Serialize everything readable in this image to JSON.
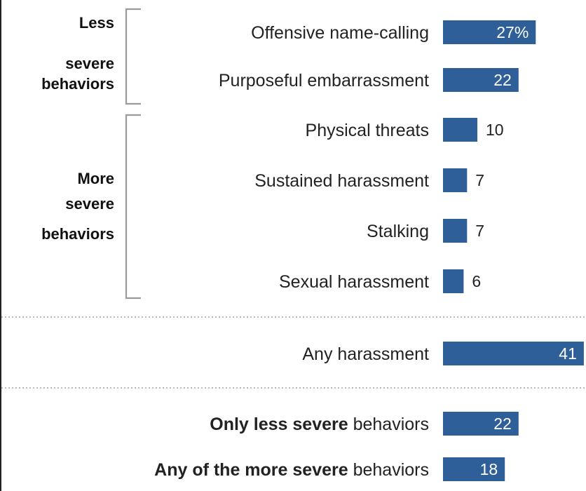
{
  "chart_data": {
    "type": "bar",
    "orientation": "horizontal",
    "value_suffix_first": "%",
    "groups": [
      {
        "label_lines": [
          "Less",
          "severe",
          "behaviors"
        ],
        "rows": [
          0,
          1
        ]
      },
      {
        "label_lines": [
          "More",
          "severe",
          "behaviors"
        ],
        "rows": [
          2,
          3,
          4,
          5
        ]
      }
    ],
    "categories": [
      {
        "label": "Offensive name-calling",
        "value": 27,
        "value_label": "27%"
      },
      {
        "label": "Purposeful embarrassment",
        "value": 22,
        "value_label": "22"
      },
      {
        "label": "Physical threats",
        "value": 10,
        "value_label": "10"
      },
      {
        "label": "Sustained harassment",
        "value": 7,
        "value_label": "7"
      },
      {
        "label": "Stalking",
        "value": 7,
        "value_label": "7"
      },
      {
        "label": "Sexual harassment",
        "value": 6,
        "value_label": "6"
      },
      {
        "label": "Any harassment",
        "value": 41,
        "value_label": "41"
      },
      {
        "label_bold": "Only less severe",
        "label_rest": " behaviors",
        "value": 22,
        "value_label": "22"
      },
      {
        "label_bold": "Any of the more severe",
        "label_rest": " behaviors",
        "value": 18,
        "value_label": "18"
      }
    ],
    "xlim": [
      0,
      41
    ],
    "bar_color": "#2e5f99",
    "separator_color": "#b9b9b9"
  }
}
